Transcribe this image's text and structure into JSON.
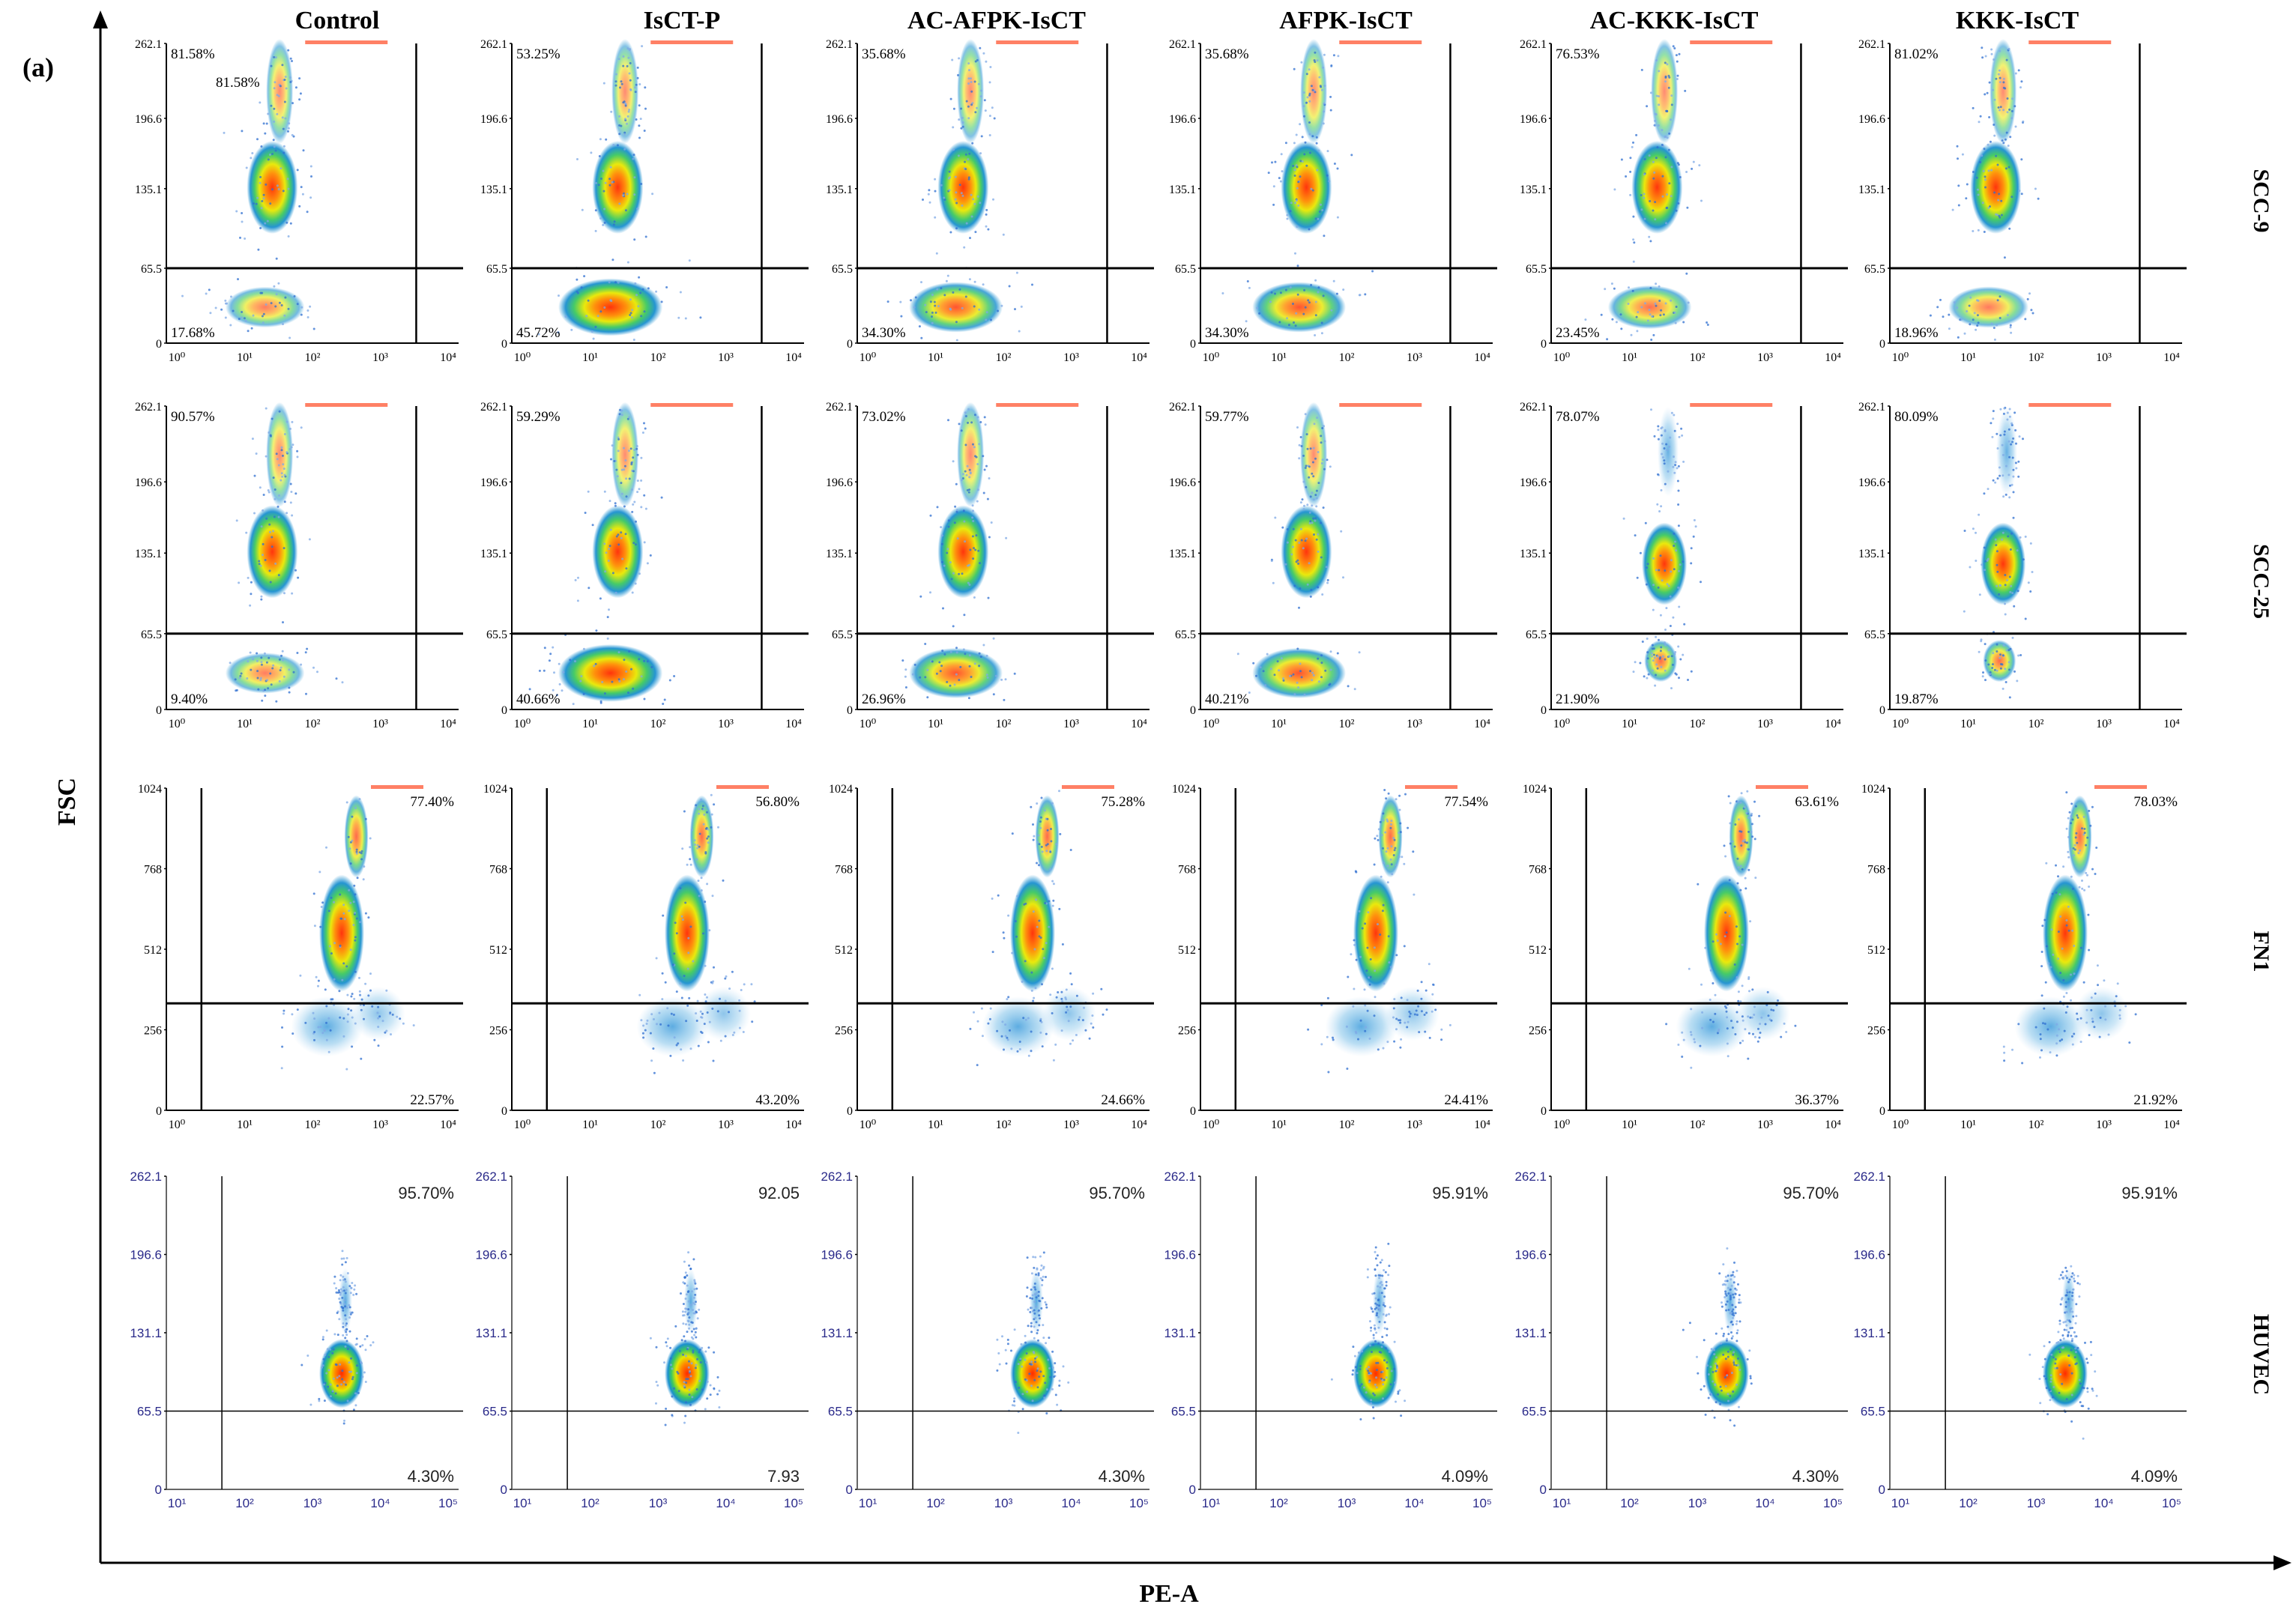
{
  "figure": {
    "panel_label": "(a)",
    "x_axis_label": "PE-A",
    "y_axis_label": "FSC"
  },
  "chart_data": {
    "type": "scatter",
    "subtype": "flow-cytometry density dot plots (6 x 4 grid)",
    "columns": [
      "Control",
      "IsCT-P",
      "AC-AFPK-IsCT",
      "AFPK-IsCT",
      "AC-KKK-IsCT",
      "KKK-IsCT"
    ],
    "rows": [
      {
        "name": "SCC-9",
        "yticks": [
          "262.1",
          "196.6",
          "135.1",
          "65.5",
          "0"
        ],
        "xticks": [
          "10⁰",
          "10¹",
          "10²",
          "10³",
          "10⁴"
        ],
        "ylim": [
          0,
          262.1
        ],
        "xlim_log10": [
          0,
          4
        ],
        "gate_y": 65.5,
        "upper": [
          "81.58%",
          "53.25%",
          "35.68%",
          "35.68%",
          "76.53%",
          "81.02%"
        ],
        "upper_repeat": [
          "81.58%",
          "",
          "",
          "",
          "",
          ""
        ],
        "lower": [
          "17.68%",
          "45.72%",
          "34.30%",
          "34.30%",
          "23.45%",
          "18.96%"
        ]
      },
      {
        "name": "SCC-25",
        "yticks": [
          "262.1",
          "196.6",
          "135.1",
          "65.5",
          "0"
        ],
        "xticks": [
          "10⁰",
          "10¹",
          "10²",
          "10³",
          "10⁴"
        ],
        "ylim": [
          0,
          262.1
        ],
        "xlim_log10": [
          0,
          4
        ],
        "gate_y": 65.5,
        "upper": [
          "90.57%",
          "59.29%",
          "73.02%",
          "59.77%",
          "78.07%",
          "80.09%"
        ],
        "lower": [
          "9.40%",
          "40.66%",
          "26.96%",
          "40.21%",
          "21.90%",
          "19.87%"
        ]
      },
      {
        "name": "FN1",
        "yticks": [
          "1024",
          "768",
          "512",
          "256",
          "0"
        ],
        "xticks": [
          "10⁰",
          "10¹",
          "10²",
          "10³",
          "10⁴"
        ],
        "ylim": [
          0,
          1024
        ],
        "xlim_log10": [
          0,
          4
        ],
        "gate_y": 340,
        "upper": [
          "77.40%",
          "56.80%",
          "75.28%",
          "77.54%",
          "63.61%",
          "78.03%"
        ],
        "lower": [
          "22.57%",
          "43.20%",
          "24.66%",
          "24.41%",
          "36.37%",
          "21.92%"
        ]
      },
      {
        "name": "HUVEC",
        "yticks": [
          "262.1",
          "196.6",
          "131.1",
          "65.5",
          "0"
        ],
        "xticks": [
          "10¹",
          "10²",
          "10³",
          "10⁴",
          "10⁵"
        ],
        "ylim": [
          0,
          262.1
        ],
        "xlim_log10": [
          1,
          5
        ],
        "gate_y": 65.5,
        "upper": [
          "95.70%",
          "92.05",
          "95.70%",
          "95.91%",
          "95.70%",
          "95.91%"
        ],
        "lower": [
          "4.30%",
          "7.93",
          "4.30%",
          "4.09%",
          "4.30%",
          "4.09%"
        ]
      }
    ]
  }
}
